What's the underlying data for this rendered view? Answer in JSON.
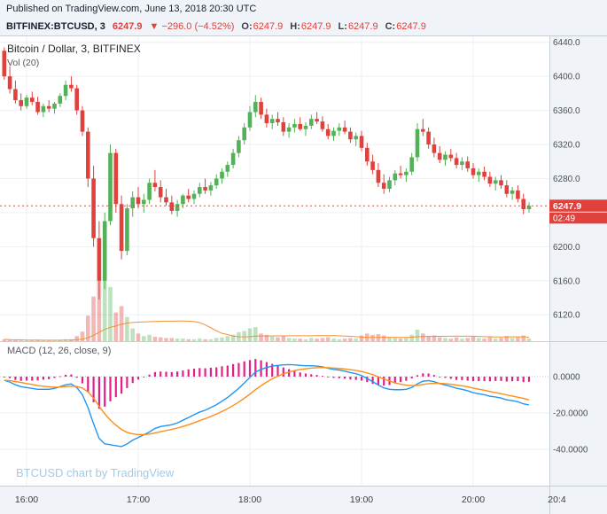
{
  "page": {
    "published": "Published on TradingView.com, June 13, 2018 20:30 UTC"
  },
  "symbol_bar": {
    "symbol": "BITFINEX:BTCUSD, 3",
    "last": "6247.9",
    "change": "▼ −296.0 (−4.52%)",
    "ohlc": [
      {
        "label": "O:",
        "value": "6247.9"
      },
      {
        "label": "H:",
        "value": "6247.9"
      },
      {
        "label": "L:",
        "value": "6247.9"
      },
      {
        "label": "C:",
        "value": "6247.9"
      }
    ]
  },
  "main_pane": {
    "legend": "Bitcoin / Dollar, 3, BITFINEX",
    "vol_legend": "Vol (20)"
  },
  "macd_pane": {
    "legend": "MACD (12, 26, close, 9)"
  },
  "watermark": "BTCUSD chart by TradingView",
  "price_axis": {
    "badge": "6247.9",
    "countdown": "02:49"
  },
  "colors": {
    "up": "#53b158",
    "down": "#e0413d",
    "vol_up": "rgba(83,177,88,0.38)",
    "vol_down": "rgba(224,65,61,0.38)",
    "vol_ma": "#ef9235",
    "macd_line": "#2196f3",
    "signal_line": "#ff8d1a",
    "histogram": "#e0218a",
    "badge_bg": "#e0413d",
    "badge_text": "#ffffff",
    "last_line": "#c2514d",
    "grid": "#eceff4",
    "divider": "#c9cdd4",
    "axis_bg": "#f0f3f7",
    "axis_text": "#4a4e57",
    "zero_line": "#c6cad2",
    "watermark": "#9ecbe8"
  },
  "chart_data": [
    {
      "type": "candlestick",
      "title": "Bitcoin / Dollar, 3, BITFINEX",
      "exchange": "BITFINEX",
      "interval_min": 3,
      "x_start": "15:48",
      "last_price": 6247.9,
      "ylim": [
        6089,
        6448
      ],
      "yticks": [
        6120,
        6160,
        6200,
        6240,
        6280,
        6320,
        6360,
        6400,
        6440
      ],
      "time_ticks": [
        {
          "i": 4,
          "label": "16:00"
        },
        {
          "i": 24,
          "label": "17:00"
        },
        {
          "i": 44,
          "label": "18:00"
        },
        {
          "i": 64,
          "label": "19:00"
        },
        {
          "i": 84,
          "label": "20:00"
        },
        {
          "i": 99,
          "label": "20:4"
        }
      ],
      "ohlc": [
        [
          6430,
          6434,
          6396,
          6400
        ],
        [
          6400,
          6412,
          6380,
          6385
        ],
        [
          6385,
          6395,
          6368,
          6372
        ],
        [
          6372,
          6380,
          6360,
          6365
        ],
        [
          6365,
          6378,
          6362,
          6375
        ],
        [
          6375,
          6382,
          6366,
          6370
        ],
        [
          6370,
          6376,
          6355,
          6358
        ],
        [
          6358,
          6368,
          6352,
          6365
        ],
        [
          6365,
          6372,
          6358,
          6362
        ],
        [
          6362,
          6370,
          6356,
          6368
        ],
        [
          6368,
          6380,
          6364,
          6377
        ],
        [
          6377,
          6395,
          6372,
          6390
        ],
        [
          6390,
          6400,
          6382,
          6386
        ],
        [
          6386,
          6390,
          6355,
          6360
        ],
        [
          6360,
          6365,
          6330,
          6335
        ],
        [
          6335,
          6340,
          6270,
          6280
        ],
        [
          6280,
          6295,
          6200,
          6210
        ],
        [
          6210,
          6230,
          6138,
          6160
        ],
        [
          6160,
          6240,
          6150,
          6230
        ],
        [
          6230,
          6320,
          6225,
          6310
        ],
        [
          6310,
          6315,
          6240,
          6250
        ],
        [
          6250,
          6260,
          6185,
          6195
        ],
        [
          6195,
          6250,
          6190,
          6245
        ],
        [
          6245,
          6265,
          6235,
          6258
        ],
        [
          6258,
          6270,
          6245,
          6250
        ],
        [
          6250,
          6262,
          6240,
          6255
        ],
        [
          6255,
          6280,
          6250,
          6275
        ],
        [
          6275,
          6290,
          6265,
          6270
        ],
        [
          6270,
          6278,
          6252,
          6258
        ],
        [
          6258,
          6268,
          6248,
          6252
        ],
        [
          6252,
          6260,
          6238,
          6242
        ],
        [
          6242,
          6255,
          6235,
          6250
        ],
        [
          6250,
          6262,
          6245,
          6260
        ],
        [
          6260,
          6268,
          6252,
          6256
        ],
        [
          6256,
          6266,
          6250,
          6262
        ],
        [
          6262,
          6275,
          6258,
          6270
        ],
        [
          6270,
          6280,
          6262,
          6266
        ],
        [
          6266,
          6276,
          6260,
          6272
        ],
        [
          6272,
          6285,
          6268,
          6280
        ],
        [
          6280,
          6292,
          6274,
          6288
        ],
        [
          6288,
          6300,
          6282,
          6296
        ],
        [
          6296,
          6315,
          6292,
          6310
        ],
        [
          6310,
          6330,
          6305,
          6325
        ],
        [
          6325,
          6345,
          6320,
          6340
        ],
        [
          6340,
          6365,
          6336,
          6358
        ],
        [
          6358,
          6378,
          6352,
          6370
        ],
        [
          6370,
          6375,
          6350,
          6355
        ],
        [
          6355,
          6362,
          6340,
          6345
        ],
        [
          6345,
          6355,
          6338,
          6350
        ],
        [
          6350,
          6358,
          6342,
          6346
        ],
        [
          6346,
          6352,
          6330,
          6335
        ],
        [
          6335,
          6345,
          6328,
          6340
        ],
        [
          6340,
          6350,
          6334,
          6344
        ],
        [
          6344,
          6352,
          6336,
          6338
        ],
        [
          6338,
          6346,
          6330,
          6342
        ],
        [
          6342,
          6355,
          6338,
          6350
        ],
        [
          6350,
          6358,
          6344,
          6347
        ],
        [
          6347,
          6353,
          6335,
          6338
        ],
        [
          6338,
          6344,
          6326,
          6330
        ],
        [
          6330,
          6340,
          6324,
          6336
        ],
        [
          6336,
          6345,
          6330,
          6340
        ],
        [
          6340,
          6348,
          6332,
          6335
        ],
        [
          6335,
          6340,
          6322,
          6326
        ],
        [
          6326,
          6334,
          6318,
          6330
        ],
        [
          6330,
          6336,
          6312,
          6316
        ],
        [
          6316,
          6322,
          6295,
          6300
        ],
        [
          6300,
          6308,
          6285,
          6290
        ],
        [
          6290,
          6298,
          6270,
          6275
        ],
        [
          6275,
          6285,
          6262,
          6268
        ],
        [
          6268,
          6282,
          6264,
          6278
        ],
        [
          6278,
          6290,
          6272,
          6286
        ],
        [
          6286,
          6295,
          6280,
          6284
        ],
        [
          6284,
          6292,
          6276,
          6288
        ],
        [
          6288,
          6310,
          6284,
          6305
        ],
        [
          6305,
          6345,
          6300,
          6338
        ],
        [
          6338,
          6350,
          6330,
          6335
        ],
        [
          6335,
          6340,
          6315,
          6320
        ],
        [
          6320,
          6328,
          6305,
          6310
        ],
        [
          6310,
          6318,
          6298,
          6302
        ],
        [
          6302,
          6312,
          6295,
          6308
        ],
        [
          6308,
          6315,
          6300,
          6304
        ],
        [
          6304,
          6310,
          6292,
          6296
        ],
        [
          6296,
          6305,
          6290,
          6300
        ],
        [
          6300,
          6306,
          6288,
          6292
        ],
        [
          6292,
          6298,
          6280,
          6284
        ],
        [
          6284,
          6292,
          6276,
          6288
        ],
        [
          6288,
          6294,
          6278,
          6282
        ],
        [
          6282,
          6288,
          6270,
          6274
        ],
        [
          6274,
          6282,
          6266,
          6278
        ],
        [
          6278,
          6284,
          6268,
          6272
        ],
        [
          6272,
          6278,
          6258,
          6262
        ],
        [
          6262,
          6270,
          6255,
          6266
        ],
        [
          6266,
          6272,
          6252,
          6256
        ],
        [
          6256,
          6262,
          6238,
          6244
        ],
        [
          6244,
          6252,
          6240,
          6247.9
        ]
      ],
      "volume_ma_period": 20,
      "volume": [
        3,
        2,
        2,
        1,
        1,
        1,
        2,
        1,
        1,
        1,
        2,
        3,
        3,
        8,
        15,
        40,
        70,
        95,
        100,
        85,
        45,
        55,
        38,
        20,
        12,
        8,
        10,
        7,
        6,
        5,
        5,
        4,
        4,
        3,
        3,
        4,
        3,
        3,
        5,
        6,
        8,
        10,
        14,
        16,
        20,
        22,
        12,
        10,
        7,
        6,
        8,
        5,
        4,
        4,
        3,
        5,
        4,
        5,
        6,
        4,
        3,
        4,
        5,
        4,
        9,
        12,
        10,
        11,
        9,
        6,
        5,
        4,
        5,
        10,
        18,
        12,
        8,
        9,
        6,
        5,
        4,
        6,
        4,
        5,
        7,
        5,
        4,
        6,
        4,
        5,
        8,
        5,
        6,
        9,
        4
      ]
    },
    {
      "type": "macd",
      "title": "MACD (12, 26, close, 9)",
      "params": {
        "fast": 12,
        "slow": 26,
        "source": "close",
        "smoothing": 9
      },
      "ylim": [
        -60,
        19.5
      ],
      "yticks": [
        0,
        -20,
        -40
      ],
      "ytick_labels": [
        "0.0000",
        "-20.0000",
        "-40.0000"
      ],
      "macd": [
        -2,
        -3,
        -4.5,
        -5.5,
        -6,
        -6.5,
        -7,
        -7,
        -7,
        -6.5,
        -5.5,
        -4.5,
        -4,
        -6,
        -10,
        -17,
        -26,
        -34,
        -37,
        -37.5,
        -38,
        -38.5,
        -37,
        -35,
        -33.5,
        -32,
        -30.5,
        -28.5,
        -27.5,
        -27,
        -26.5,
        -25.5,
        -24,
        -22.5,
        -21,
        -19.5,
        -18.5,
        -17,
        -15.5,
        -13.5,
        -11.5,
        -9,
        -6.5,
        -3.5,
        -0.5,
        2.5,
        4,
        5,
        5.8,
        6.2,
        6.5,
        6.6,
        6.5,
        6.2,
        6,
        6,
        5.8,
        5.4,
        4.6,
        4,
        3.6,
        3,
        2.2,
        1.6,
        0.6,
        -1,
        -2.8,
        -4.6,
        -6.2,
        -7,
        -7.2,
        -7.2,
        -7,
        -6,
        -4,
        -2.5,
        -2.2,
        -2.8,
        -3.8,
        -4.6,
        -5.4,
        -6.4,
        -7,
        -7.8,
        -8.8,
        -9.4,
        -10,
        -10.8,
        -11.2,
        -11.8,
        -12.8,
        -13.2,
        -13.8,
        -15,
        -15.6
      ],
      "signal": [
        -2,
        -2.2,
        -2.7,
        -3.2,
        -3.8,
        -4.3,
        -4.9,
        -5.3,
        -5.6,
        -5.8,
        -5.7,
        -5.5,
        -5.2,
        -5.4,
        -6.3,
        -8.4,
        -11.9,
        -16.3,
        -20.5,
        -23.9,
        -26.7,
        -29.1,
        -30.7,
        -31.5,
        -31.9,
        -31.9,
        -31.6,
        -31,
        -30.3,
        -29.7,
        -29,
        -28.3,
        -27.4,
        -26.5,
        -25.4,
        -24.2,
        -23.1,
        -21.9,
        -20.6,
        -19.2,
        -17.6,
        -15.9,
        -14,
        -11.9,
        -9.6,
        -7.2,
        -5,
        -3,
        -1.2,
        0.3,
        1.5,
        2.5,
        3.3,
        3.9,
        4.3,
        4.7,
        4.9,
        5,
        4.9,
        4.7,
        4.5,
        4.2,
        3.8,
        3.4,
        2.8,
        2,
        1.1,
        -0.1,
        -1.3,
        -2.4,
        -3.4,
        -4.2,
        -4.7,
        -5,
        -4.8,
        -4.3,
        -3.9,
        -3.7,
        -3.7,
        -3.9,
        -4.2,
        -4.6,
        -5.1,
        -5.6,
        -6.3,
        -6.9,
        -7.5,
        -8.2,
        -8.8,
        -9.4,
        -10.1,
        -10.7,
        -11.3,
        -12,
        -12.8
      ]
    }
  ]
}
